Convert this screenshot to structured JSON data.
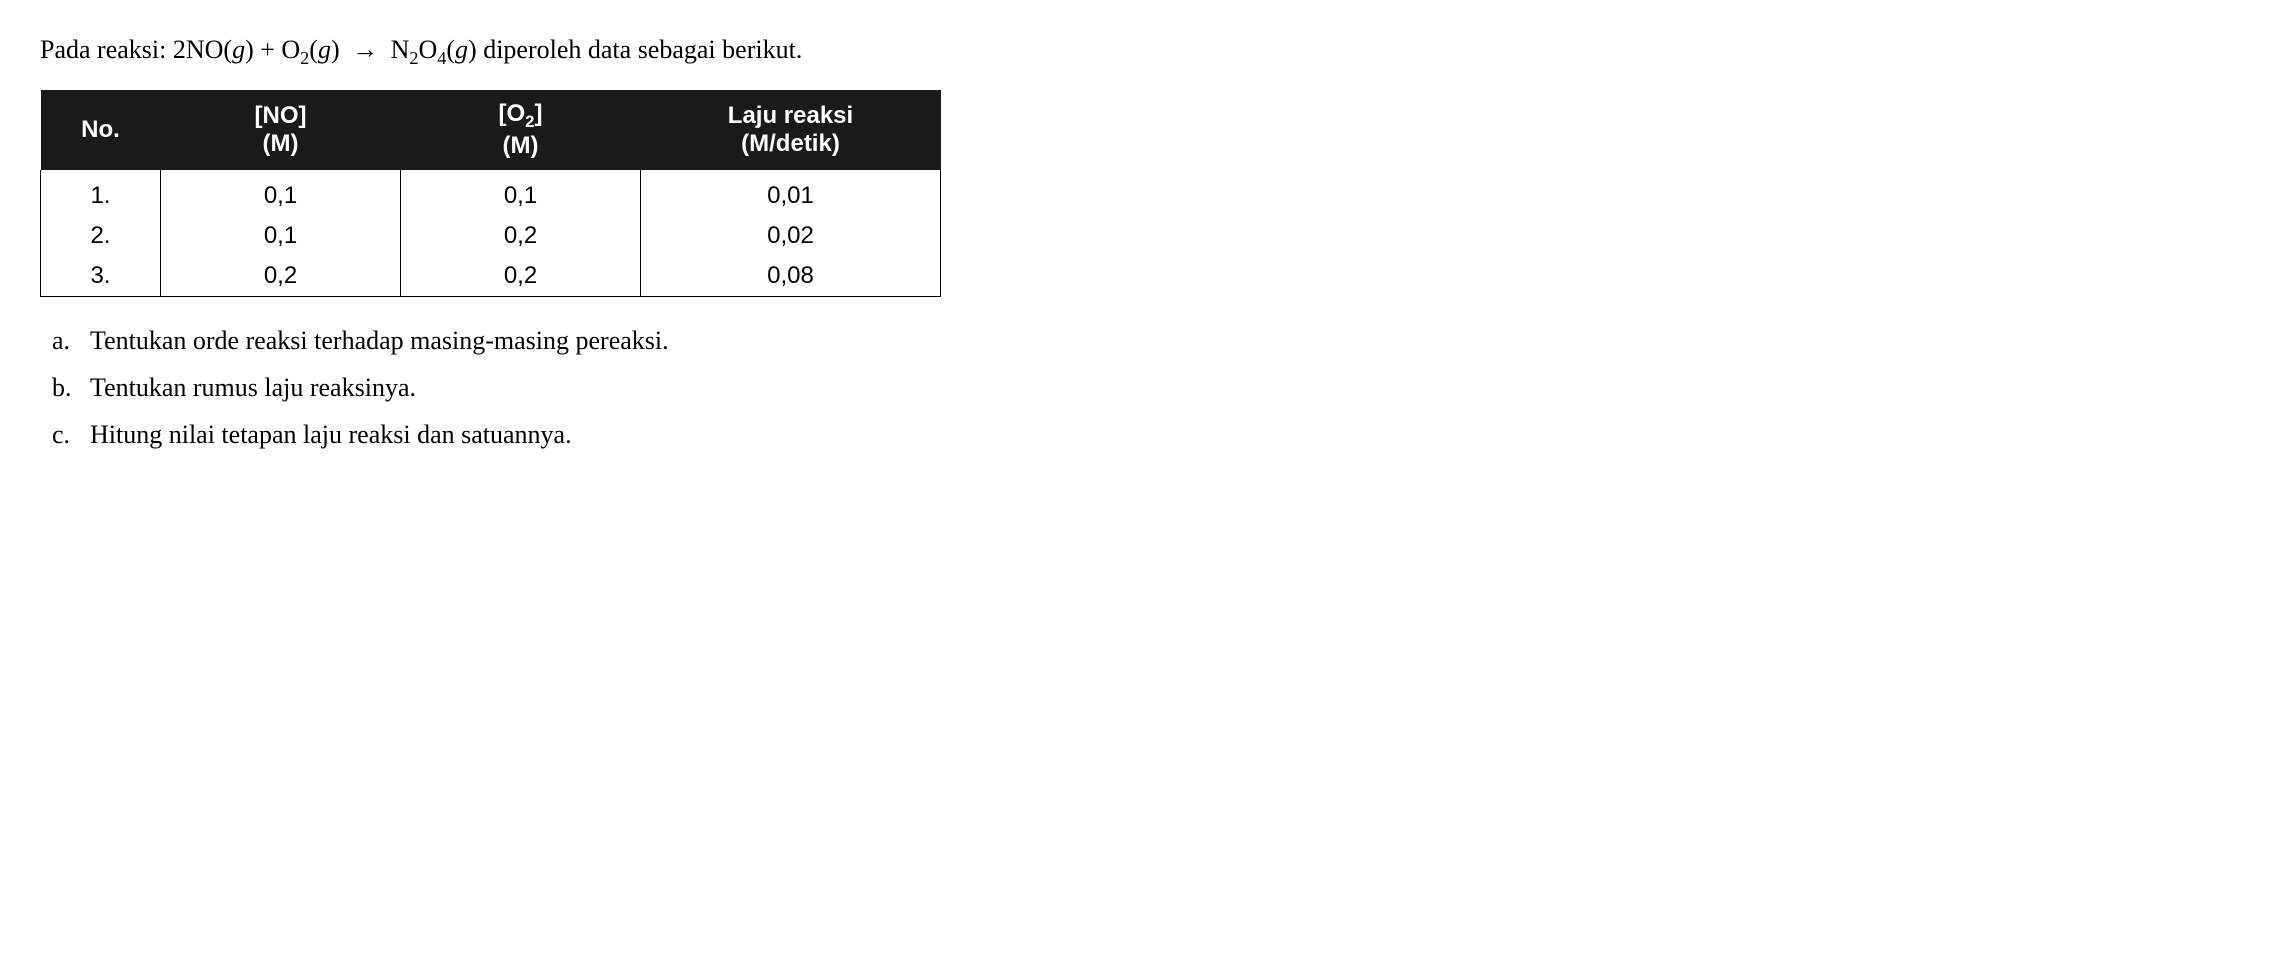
{
  "intro": {
    "prefix": "Pada reaksi: ",
    "eq_left1": "2NO(",
    "eq_left1_var": "g",
    "eq_left1_close": ") + O",
    "eq_left1_sub": "2",
    "eq_left2_open": "(",
    "eq_left2_var": "g",
    "eq_left2_close": ") ",
    "arrow": "→",
    "eq_right_n": " N",
    "eq_right_sub1": "2",
    "eq_right_o": "O",
    "eq_right_sub2": "4",
    "eq_right_open": "(",
    "eq_right_var": "g",
    "eq_right_close": ") ",
    "suffix": "diperoleh data sebagai berikut."
  },
  "table": {
    "headers": {
      "no": {
        "main": "No.",
        "sub": ""
      },
      "col2": {
        "main": "[NO]",
        "sub": "(M)"
      },
      "col3": {
        "main_pre": "[O",
        "main_sub": "2",
        "main_post": "]",
        "sub": "(M)"
      },
      "col4": {
        "main": "Laju reaksi",
        "sub": "(M/detik)"
      }
    },
    "rows": [
      {
        "no": "1.",
        "c2": "0,1",
        "c3": "0,1",
        "c4": "0,01"
      },
      {
        "no": "2.",
        "c2": "0,1",
        "c3": "0,2",
        "c4": "0,02"
      },
      {
        "no": "3.",
        "c2": "0,2",
        "c3": "0,2",
        "c4": "0,08"
      }
    ],
    "colors": {
      "header_bg": "#1a1a1a",
      "header_text": "#ffffff",
      "border": "#000000",
      "cell_bg": "#ffffff"
    }
  },
  "questions": [
    {
      "label": "a.",
      "text": "Tentukan orde reaksi terhadap masing-masing pereaksi."
    },
    {
      "label": "b.",
      "text": "Tentukan rumus laju reaksinya."
    },
    {
      "label": "c.",
      "text": "Hitung nilai tetapan laju reaksi dan satuannya."
    }
  ]
}
